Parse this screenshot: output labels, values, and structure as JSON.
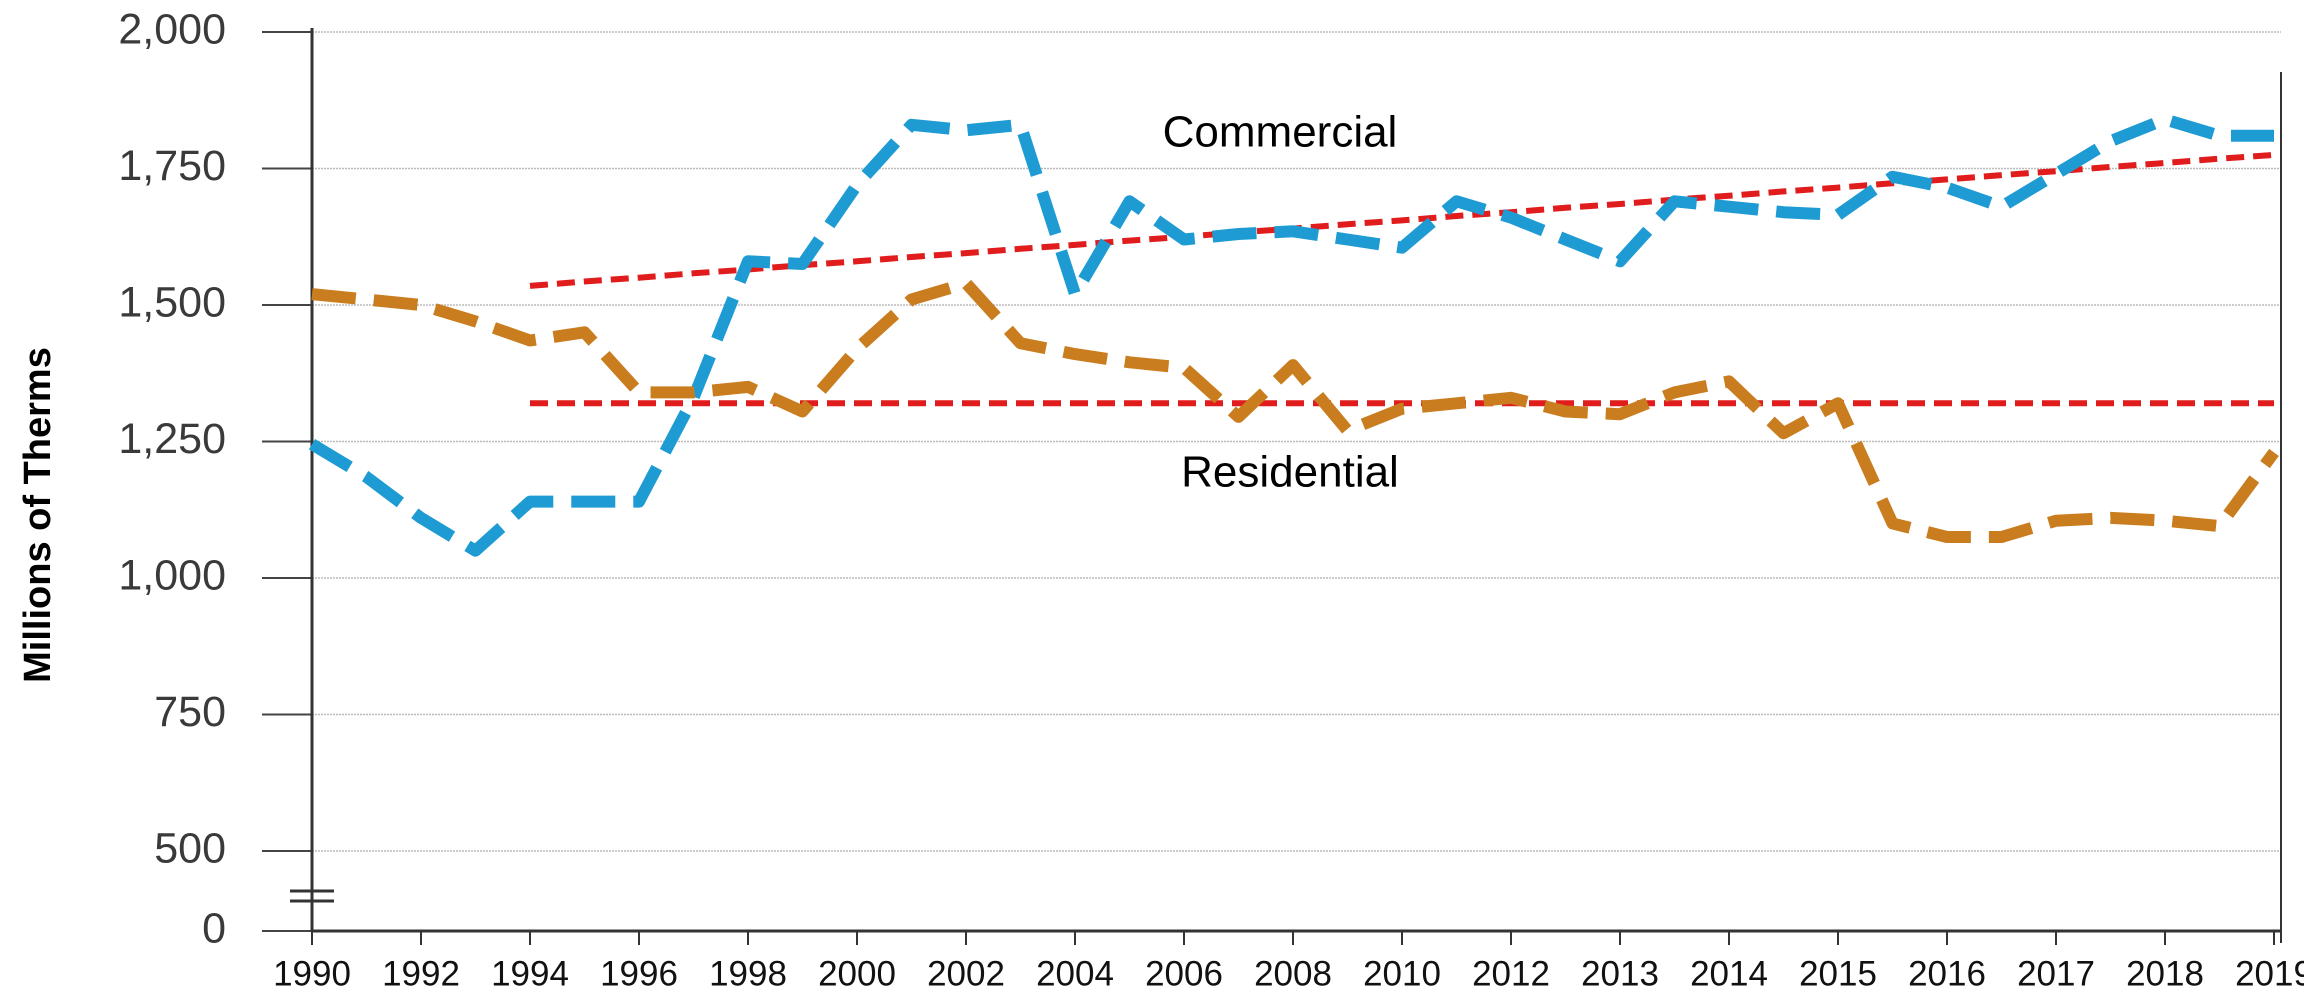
{
  "chart_data": {
    "type": "line",
    "ylabel": "Millions of Therms",
    "categories": [
      "1990",
      null,
      "1992",
      null,
      "1994",
      null,
      "1996",
      null,
      "1998",
      null,
      "2000",
      null,
      "2002",
      null,
      "2004",
      null,
      "2006",
      null,
      "2008",
      null,
      "2010",
      null,
      "2012",
      null,
      "2013",
      null,
      "2014",
      null,
      "2015",
      null,
      "2016",
      null,
      "2017",
      null,
      "2018",
      null,
      "2019"
    ],
    "ylim": [
      500,
      2000
    ],
    "yticks": [
      0,
      500,
      750,
      {
        "value": 1000,
        "label": "1,000"
      },
      {
        "value": 1250,
        "label": "1,250"
      },
      {
        "value": 1500,
        "label": "1,500"
      },
      {
        "value": 1750,
        "label": "1,750"
      },
      {
        "value": 2000,
        "label": "2,000"
      }
    ],
    "axis_break": true,
    "grid": true,
    "series": [
      {
        "name": "Commercial",
        "color": "#1f9bd3",
        "values": [
          1245,
          1185,
          1110,
          1050,
          1140,
          1140,
          1140,
          1330,
          1580,
          1575,
          1720,
          1830,
          1820,
          1830,
          1520,
          1690,
          1620,
          1630,
          1635,
          1620,
          1605,
          1690,
          1660,
          1620,
          1580,
          1690,
          1680,
          1670,
          1665,
          1735,
          1715,
          1680,
          1740,
          1800,
          1840,
          1810,
          1810
        ]
      },
      {
        "name": "Residential",
        "color": "#c97d1e",
        "values": [
          1520,
          1510,
          1500,
          1470,
          1435,
          1450,
          1340,
          1340,
          1350,
          1305,
          1420,
          1510,
          1540,
          1430,
          1410,
          1395,
          1385,
          1295,
          1390,
          1270,
          1310,
          1320,
          1330,
          1305,
          1300,
          1340,
          1360,
          1265,
          1320,
          1100,
          1075,
          1075,
          1105,
          1110,
          1105,
          1095,
          1230
        ]
      },
      {
        "color": "#e01c1c",
        "trend": true,
        "values": [
          null,
          null,
          null,
          null,
          1535,
          1543,
          1550,
          1558,
          1565,
          1573,
          1580,
          1588,
          1595,
          1603,
          1610,
          1618,
          1625,
          1633,
          1640,
          1648,
          1655,
          1663,
          1670,
          1678,
          1685,
          1693,
          1700,
          1708,
          1715,
          1723,
          1730,
          1738,
          1745,
          1753,
          1760,
          1768,
          1775
        ]
      },
      {
        "color": "#e01c1c",
        "trend": true,
        "values": [
          null,
          null,
          null,
          null,
          1320,
          1320,
          1320,
          1320,
          1320,
          1320,
          1320,
          1320,
          1320,
          1320,
          1320,
          1320,
          1320,
          1320,
          1320,
          1320,
          1320,
          1320,
          1320,
          1320,
          1320,
          1320,
          1320,
          1320,
          1320,
          1320,
          1320,
          1320,
          1320,
          1320,
          1320,
          1320,
          1320
        ]
      }
    ]
  }
}
